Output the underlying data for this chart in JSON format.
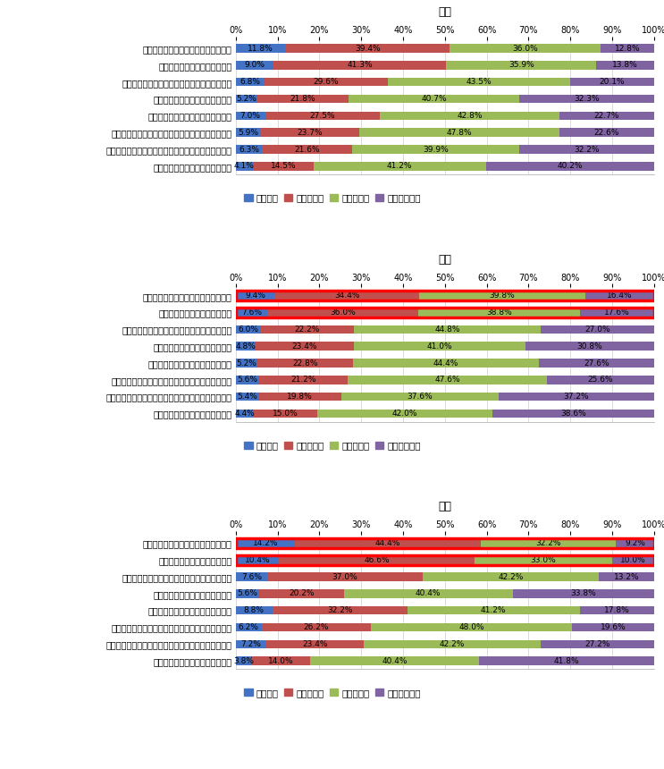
{
  "sections": [
    {
      "title": "全体",
      "categories": [
        "ついつい買いすぎてしまうことがある",
        "傷んだ食材を捨てることがある",
        "食材を買いすぎてダメにしてしまうことがある",
        "好き嫌いがあり、残すことがある",
        "食事を作りすぎてしまうことがある",
        "食材を使う時、切り捨てる部分が多くなってしまう",
        "作った食事を食べ忘れて、捨ててしまったことがある",
        "料理を失敗し、捨てることがある"
      ],
      "values": [
        [
          11.8,
          39.4,
          36.0,
          12.8
        ],
        [
          9.0,
          41.3,
          35.9,
          13.8
        ],
        [
          6.8,
          29.6,
          43.5,
          20.1
        ],
        [
          5.2,
          21.8,
          40.7,
          32.3
        ],
        [
          7.0,
          27.5,
          42.8,
          22.7
        ],
        [
          5.9,
          23.7,
          47.8,
          22.6
        ],
        [
          6.3,
          21.6,
          39.9,
          32.2
        ],
        [
          4.1,
          14.5,
          41.2,
          40.2
        ]
      ],
      "highlight": [
        false,
        false,
        false,
        false,
        false,
        false,
        false,
        false
      ]
    },
    {
      "title": "男性",
      "categories": [
        "ついつい買いすぎてしまうことがある",
        "傷んだ食材を捨てることがある",
        "食材を買いすぎてダメにしてしまうことがある",
        "好き嫌いがあり、残すことがある",
        "食事を作りすぎてしまうことがある",
        "食材を使う時、切り捨てる部分が多くなってしまう",
        "作った食事を食べ忘れて、捨ててしまったことがある",
        "料理を失敗し、捨てることがある"
      ],
      "values": [
        [
          9.4,
          34.4,
          39.8,
          16.4
        ],
        [
          7.6,
          36.0,
          38.8,
          17.6
        ],
        [
          6.0,
          22.2,
          44.8,
          27.0
        ],
        [
          4.8,
          23.4,
          41.0,
          30.8
        ],
        [
          5.2,
          22.8,
          44.4,
          27.6
        ],
        [
          5.6,
          21.2,
          47.6,
          25.6
        ],
        [
          5.4,
          19.8,
          37.6,
          37.2
        ],
        [
          4.4,
          15.0,
          42.0,
          38.6
        ]
      ],
      "highlight": [
        true,
        true,
        false,
        false,
        false,
        false,
        false,
        false
      ]
    },
    {
      "title": "女性",
      "categories": [
        "ついつい買いすぎてしまうことがある",
        "傷んだ食材を捨てることがある",
        "食材を買いすぎてダメにしてしまうことがある",
        "好き嫌いがあり、残すことがある",
        "食事を作りすぎてしまうことがある",
        "食材を使う時、切り捨てる部分が多くなってしまう",
        "作った食事を食べ忘れて、捨ててしまったことがある",
        "料理を失敗し、捨てることがある"
      ],
      "values": [
        [
          14.2,
          44.4,
          32.2,
          9.2
        ],
        [
          10.4,
          46.6,
          33.0,
          10.0
        ],
        [
          7.6,
          37.0,
          42.2,
          13.2
        ],
        [
          5.6,
          20.2,
          40.4,
          33.8
        ],
        [
          8.8,
          32.2,
          41.2,
          17.8
        ],
        [
          6.2,
          26.2,
          48.0,
          19.6
        ],
        [
          7.2,
          23.4,
          42.2,
          27.2
        ],
        [
          3.8,
          14.0,
          40.4,
          41.8
        ]
      ],
      "highlight": [
        true,
        true,
        false,
        false,
        false,
        false,
        false,
        false
      ]
    }
  ],
  "colors": [
    "#4472C4",
    "#C0504D",
    "#9BBB59",
    "#8064A2"
  ],
  "highlight_border_color": "#FF0000",
  "legend_labels": [
    "よくある",
    "たまにある",
    "あまりない",
    "まったくない"
  ],
  "bar_height": 0.5,
  "font_size_title": 9,
  "font_size_tick": 7,
  "font_size_label": 6.5,
  "font_size_legend": 7.5
}
